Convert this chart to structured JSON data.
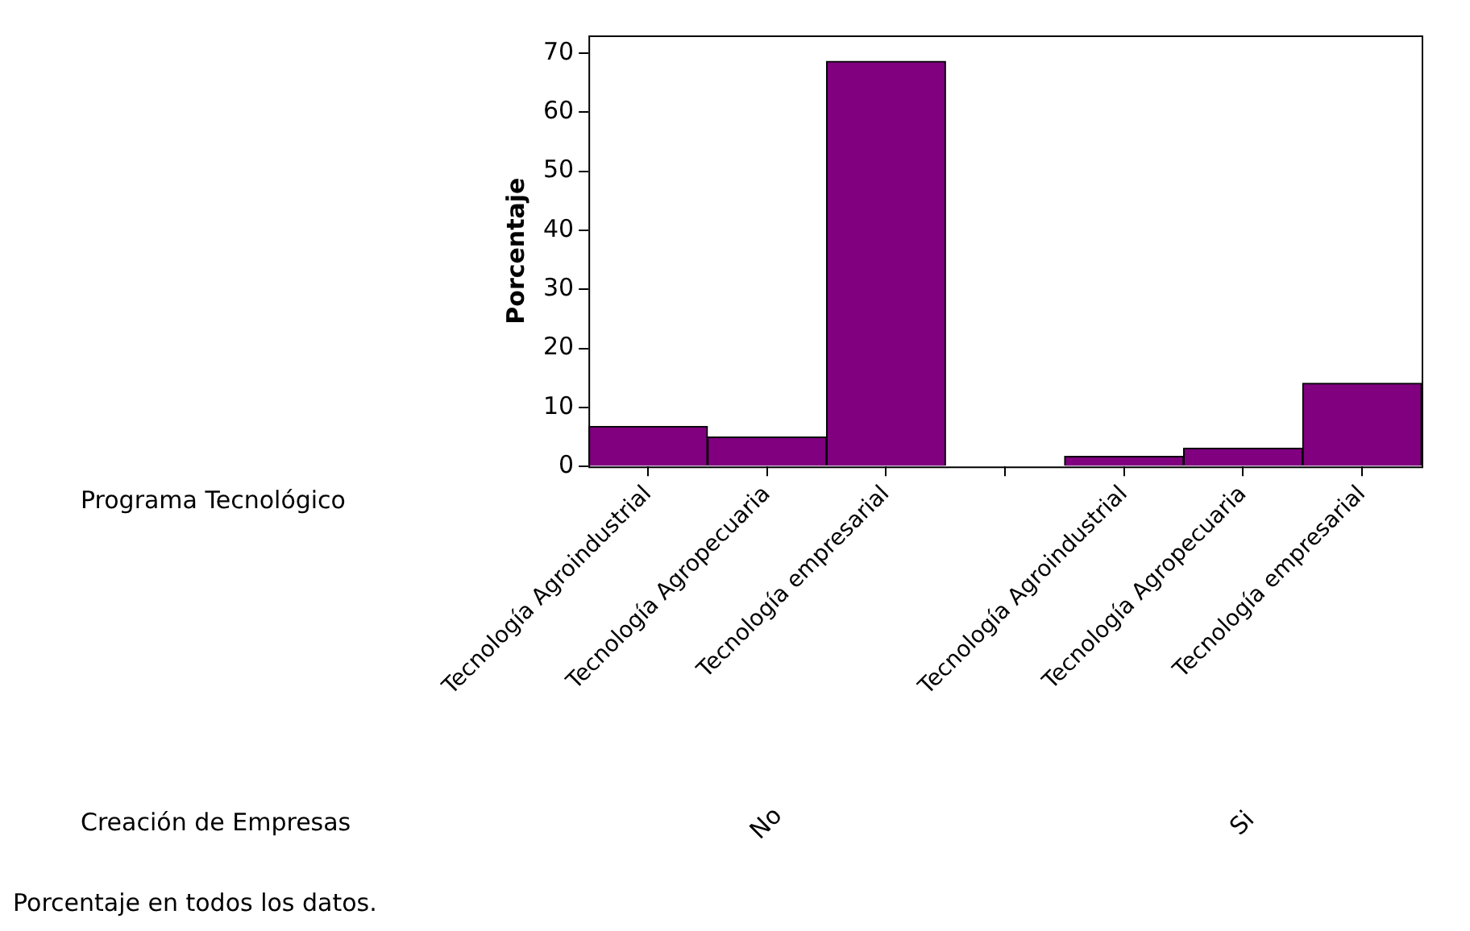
{
  "chart_data": {
    "type": "bar",
    "ylabel": "Porcentaje",
    "categories": [
      "Tecnología Agroindustrial",
      "Tecnología Agropecuaria",
      "Tecnología empresarial",
      null,
      "Tecnología Agroindustrial",
      "Tecnología Agropecuaria",
      "Tecnología empresarial"
    ],
    "values": [
      6.8,
      5.0,
      68.6,
      null,
      1.7,
      3.1,
      14.1
    ],
    "color": "#800080",
    "ylim": [
      0,
      73
    ],
    "yticks": [
      0,
      10,
      20,
      30,
      40,
      50,
      60,
      70
    ],
    "annotations": [
      "Programa Tecnológico",
      "Creación de Empresas",
      "No",
      "Si",
      "Porcentaje en todos los datos."
    ]
  }
}
